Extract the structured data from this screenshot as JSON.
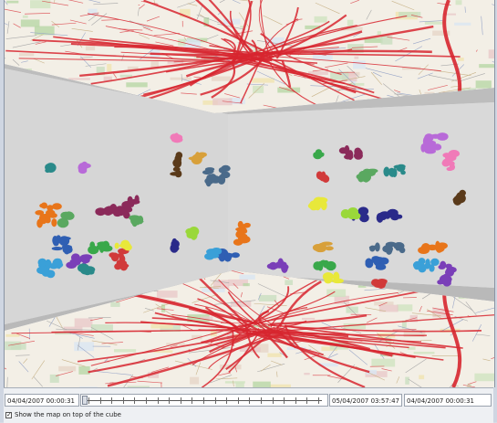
{
  "timeline": {
    "start_label": "04/04/2007 00:00:31",
    "current_label": "05/04/2007 03:57:47",
    "end_label": "04/04/2007 00:00:31",
    "position": 0
  },
  "options": {
    "show_map_label": "Show the map on top of the cube",
    "show_map_checked": true,
    "check_glyph": "✓"
  },
  "colors": {
    "map_base": "#f3efe6",
    "road_red": "#d7262f",
    "cube_wall": "#d6d6d6",
    "cube_floor": "#cfcfcf"
  }
}
